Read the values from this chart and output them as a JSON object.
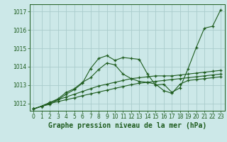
{
  "title": "Graphe pression niveau de la mer (hPa)",
  "bg_color": "#cce8e8",
  "grid_color": "#aacccc",
  "line_color": "#1e5c1e",
  "xlim": [
    -0.5,
    23.5
  ],
  "ylim": [
    1011.6,
    1017.4
  ],
  "yticks": [
    1012,
    1013,
    1014,
    1015,
    1016,
    1017
  ],
  "xticks": [
    0,
    1,
    2,
    3,
    4,
    5,
    6,
    7,
    8,
    9,
    10,
    11,
    12,
    13,
    14,
    15,
    16,
    17,
    18,
    19,
    20,
    21,
    22,
    23
  ],
  "series": [
    [
      1011.7,
      1011.85,
      1011.95,
      1012.2,
      1012.5,
      1012.75,
      1013.1,
      1013.9,
      1014.45,
      1014.6,
      1014.35,
      1014.5,
      1014.45,
      1014.4,
      1013.6,
      1013.0,
      1013.05,
      1012.6,
      1012.85,
      1013.9,
      1015.05,
      1016.1,
      1016.2,
      1017.1
    ],
    [
      1011.7,
      1011.85,
      1012.05,
      1012.25,
      1012.6,
      1012.8,
      1013.15,
      1013.4,
      1013.85,
      1014.2,
      1014.1,
      1013.6,
      1013.35,
      1013.2,
      1013.15,
      1013.05,
      1012.7,
      1012.55,
      1013.05,
      1013.25,
      1013.3,
      1013.35,
      1013.4,
      1013.45
    ],
    [
      1011.7,
      1011.85,
      1012.05,
      1012.2,
      1012.35,
      1012.5,
      1012.65,
      1012.8,
      1012.95,
      1013.05,
      1013.15,
      1013.25,
      1013.35,
      1013.4,
      1013.45,
      1013.5,
      1013.5,
      1013.5,
      1013.55,
      1013.6,
      1013.65,
      1013.7,
      1013.75,
      1013.8
    ],
    [
      1011.7,
      1011.85,
      1012.0,
      1012.1,
      1012.2,
      1012.3,
      1012.42,
      1012.52,
      1012.62,
      1012.72,
      1012.82,
      1012.92,
      1013.02,
      1013.1,
      1013.15,
      1013.2,
      1013.25,
      1013.3,
      1013.35,
      1013.4,
      1013.45,
      1013.5,
      1013.55,
      1013.6
    ]
  ],
  "title_fontsize": 7,
  "tick_fontsize": 5.5
}
